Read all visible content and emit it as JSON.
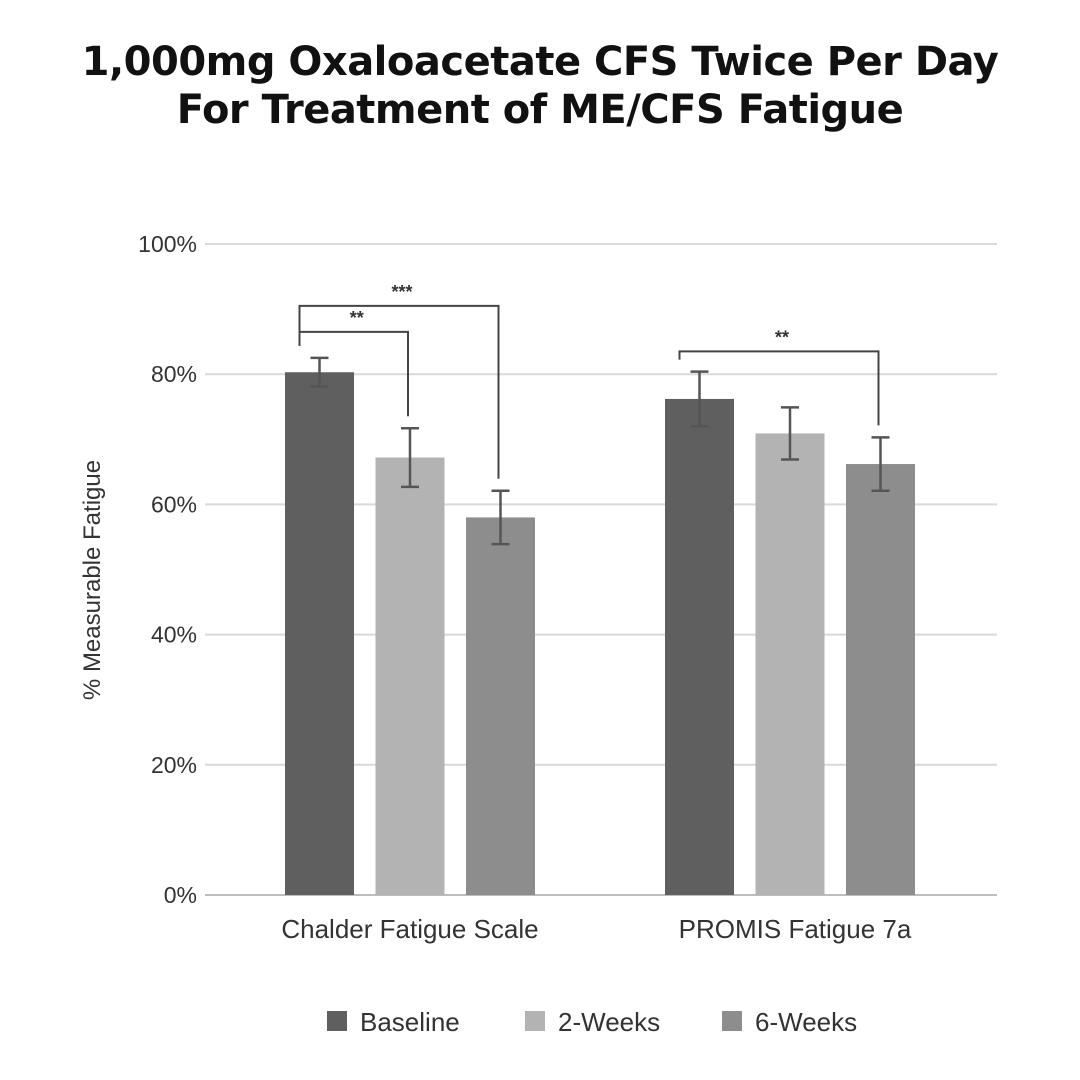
{
  "title": {
    "line1": "1,000mg Oxaloacetate CFS Twice Per Day",
    "line2": "For Treatment of ME/CFS Fatigue"
  },
  "chart_data": {
    "type": "bar",
    "ylabel": "% Measurable Fatigue",
    "xlabel": "",
    "ylim": [
      0,
      100
    ],
    "yticks": [
      0,
      20,
      40,
      60,
      80,
      100
    ],
    "ytick_labels": [
      "0%",
      "20%",
      "40%",
      "60%",
      "80%",
      "100%"
    ],
    "grid": true,
    "legend_position": "bottom",
    "categories": [
      "Chalder Fatigue Scale",
      "PROMIS Fatigue 7a"
    ],
    "series": [
      {
        "name": "Baseline",
        "color": "#5f5f5f",
        "values": [
          80.3,
          76.2
        ],
        "error": [
          2.2,
          4.2
        ]
      },
      {
        "name": "2-Weeks",
        "color": "#b3b3b3",
        "values": [
          67.2,
          70.9
        ],
        "error": [
          4.5,
          4.0
        ]
      },
      {
        "name": "6-Weeks",
        "color": "#8d8d8d",
        "values": [
          58.0,
          66.2
        ],
        "error": [
          4.1,
          4.1
        ]
      }
    ],
    "significance": [
      {
        "label": "**",
        "category": 0,
        "from_series": 0,
        "to_series": 1,
        "level": 86.5
      },
      {
        "label": "***",
        "category": 0,
        "from_series": 0,
        "to_series": 2,
        "level": 90.5
      },
      {
        "label": "**",
        "category": 1,
        "from_series": 0,
        "to_series": 2,
        "level": 83.5
      }
    ]
  }
}
